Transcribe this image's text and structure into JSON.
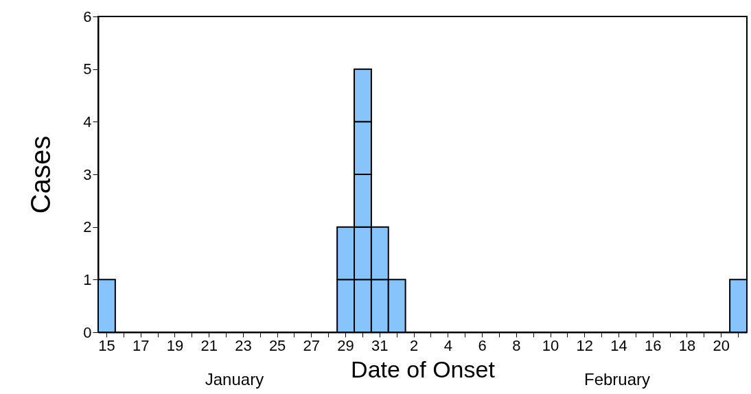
{
  "chart_data": {
    "type": "bar",
    "xlabel": "Date of Onset",
    "ylabel": "Cases",
    "stacked": true,
    "categories": [
      "15",
      null,
      "17",
      null,
      "19",
      null,
      "21",
      null,
      "23",
      null,
      "25",
      null,
      "27",
      null,
      "29",
      null,
      "31",
      null,
      "2",
      null,
      "4",
      null,
      "6",
      null,
      "8",
      null,
      "10",
      null,
      "12",
      null,
      "14",
      null,
      "16",
      null,
      "18",
      null,
      "20",
      null
    ],
    "series": [
      {
        "color": "#88c4fc",
        "values": [
          1,
          null,
          null,
          null,
          null,
          null,
          null,
          null,
          null,
          null,
          null,
          null,
          null,
          null,
          1,
          1,
          1,
          1,
          null,
          null,
          null,
          null,
          null,
          null,
          null,
          null,
          null,
          null,
          null,
          null,
          null,
          null,
          null,
          null,
          null,
          null,
          null,
          1
        ]
      },
      {
        "color": "#88c4fc",
        "values": [
          null,
          null,
          null,
          null,
          null,
          null,
          null,
          null,
          null,
          null,
          null,
          null,
          null,
          null,
          1,
          1,
          1,
          null,
          null,
          null,
          null,
          null,
          null,
          null,
          null,
          null,
          null,
          null,
          null,
          null,
          null,
          null,
          null,
          null,
          null,
          null,
          null,
          null
        ]
      },
      {
        "color": "#88c4fc",
        "values": [
          null,
          null,
          null,
          null,
          null,
          null,
          null,
          null,
          null,
          null,
          null,
          null,
          null,
          null,
          null,
          1,
          null,
          null,
          null,
          null,
          null,
          null,
          null,
          null,
          null,
          null,
          null,
          null,
          null,
          null,
          null,
          null,
          null,
          null,
          null,
          null,
          null,
          null
        ]
      },
      {
        "color": "#88c4fc",
        "values": [
          null,
          null,
          null,
          null,
          null,
          null,
          null,
          null,
          null,
          null,
          null,
          null,
          null,
          null,
          null,
          1,
          null,
          null,
          null,
          null,
          null,
          null,
          null,
          null,
          null,
          null,
          null,
          null,
          null,
          null,
          null,
          null,
          null,
          null,
          null,
          null,
          null,
          null
        ]
      },
      {
        "color": "#88c4fc",
        "values": [
          null,
          null,
          null,
          null,
          null,
          null,
          null,
          null,
          null,
          null,
          null,
          null,
          null,
          null,
          null,
          1,
          null,
          null,
          null,
          null,
          null,
          null,
          null,
          null,
          null,
          null,
          null,
          null,
          null,
          null,
          null,
          null,
          null,
          null,
          null,
          null,
          null,
          null
        ]
      }
    ],
    "ylim": [
      0,
      6
    ],
    "yticks": [
      0,
      1,
      2,
      3,
      4,
      5,
      6
    ],
    "grid": false,
    "legend": false,
    "annotations": [
      "January",
      "February"
    ]
  }
}
